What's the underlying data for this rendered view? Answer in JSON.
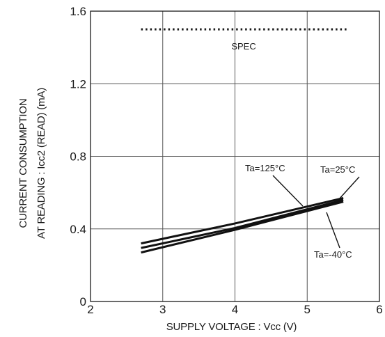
{
  "chart_data": {
    "type": "line",
    "xlabel": "SUPPLY VOLTAGE : Vcc (V)",
    "ylabel_lines": [
      "CURRENT CONSUMPTION",
      "AT READING : Icc2 (READ) (mA)"
    ],
    "xlim": [
      2,
      6
    ],
    "ylim": [
      0,
      1.6
    ],
    "x_ticks": [
      2,
      3,
      4,
      5,
      6
    ],
    "y_ticks": [
      0,
      0.4,
      0.8,
      1.2,
      1.6
    ],
    "x_tick_labels": [
      "2",
      "3",
      "4",
      "5",
      "6"
    ],
    "y_tick_labels": [
      "0",
      "0.4",
      "0.8",
      "1.2",
      "1.6"
    ],
    "grid": true,
    "series": [
      {
        "name": "Ta=125°C",
        "x": [
          2.7,
          4.0,
          5.5
        ],
        "y": [
          0.32,
          0.43,
          0.57
        ]
      },
      {
        "name": "Ta=25°C",
        "x": [
          2.7,
          4.0,
          5.5
        ],
        "y": [
          0.295,
          0.405,
          0.56
        ]
      },
      {
        "name": "Ta=-40°C",
        "x": [
          2.7,
          4.0,
          5.5
        ],
        "y": [
          0.27,
          0.395,
          0.55
        ]
      }
    ],
    "spec": {
      "label": "SPEC",
      "y": 1.5,
      "x": [
        2.7,
        5.55
      ]
    },
    "annotations": [
      {
        "text": "Ta=125°C",
        "series": 0
      },
      {
        "text": "Ta=25°C",
        "series": 1
      },
      {
        "text": "Ta=-40°C",
        "series": 2
      }
    ]
  }
}
